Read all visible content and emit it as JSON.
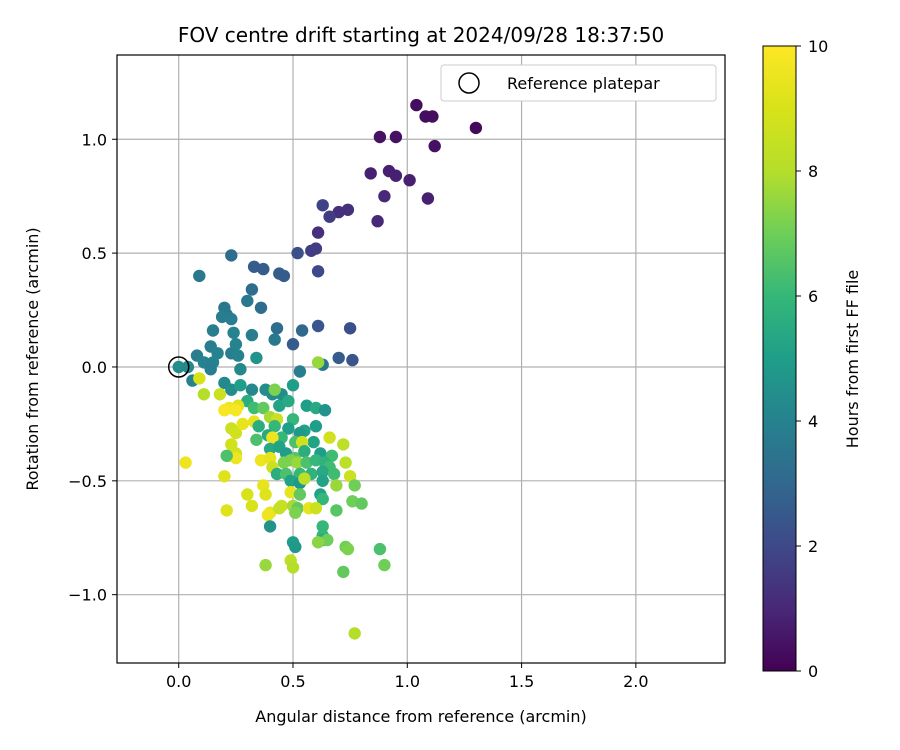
{
  "chart_data": {
    "type": "scatter",
    "title": "FOV centre drift starting at 2024/09/28 18:37:50",
    "xlabel": "Angular distance from reference (arcmin)",
    "ylabel": "Rotation from reference (arcmin)",
    "xlim": [
      -0.27,
      2.39
    ],
    "ylim": [
      -1.3,
      1.37
    ],
    "xticks": [
      0.0,
      0.5,
      1.0,
      1.5,
      2.0
    ],
    "xtick_labels": [
      "0.0",
      "0.5",
      "1.0",
      "1.5",
      "2.0"
    ],
    "yticks": [
      -1.0,
      -0.5,
      0.0,
      0.5,
      1.0
    ],
    "ytick_labels": [
      "−1.0",
      "−0.5",
      "0.0",
      "0.5",
      "1.0"
    ],
    "grid": true,
    "legend": {
      "placement": "top-right",
      "label": "Reference platepar"
    },
    "reference_point": {
      "x": 0.0,
      "y": 0.0
    },
    "colorbar": {
      "label": "Hours from first FF file",
      "range": [
        0,
        10
      ],
      "ticks": [
        0,
        2,
        4,
        6,
        8,
        10
      ],
      "tick_labels": [
        "0",
        "2",
        "4",
        "6",
        "8",
        "10"
      ],
      "colormap": "viridis"
    },
    "points": [
      [
        1.04,
        1.15,
        0.3
      ],
      [
        1.08,
        1.1,
        0.3
      ],
      [
        1.11,
        1.1,
        0.3
      ],
      [
        1.3,
        1.05,
        0.2
      ],
      [
        0.88,
        1.01,
        0.4
      ],
      [
        0.95,
        1.01,
        0.4
      ],
      [
        1.12,
        0.97,
        0.4
      ],
      [
        0.92,
        0.86,
        0.8
      ],
      [
        0.84,
        0.85,
        0.8
      ],
      [
        0.95,
        0.84,
        0.8
      ],
      [
        1.01,
        0.82,
        0.8
      ],
      [
        0.9,
        0.75,
        1.0
      ],
      [
        1.09,
        0.74,
        0.8
      ],
      [
        0.63,
        0.71,
        1.8
      ],
      [
        0.7,
        0.68,
        1.2
      ],
      [
        0.74,
        0.69,
        1.2
      ],
      [
        0.66,
        0.66,
        1.6
      ],
      [
        0.87,
        0.64,
        1.0
      ],
      [
        0.61,
        0.59,
        1.2
      ],
      [
        0.6,
        0.52,
        1.6
      ],
      [
        0.58,
        0.51,
        1.6
      ],
      [
        0.52,
        0.5,
        2.2
      ],
      [
        0.61,
        0.42,
        2.0
      ],
      [
        0.23,
        0.49,
        3.2
      ],
      [
        0.33,
        0.44,
        2.6
      ],
      [
        0.37,
        0.43,
        2.6
      ],
      [
        0.44,
        0.41,
        2.6
      ],
      [
        0.46,
        0.4,
        2.6
      ],
      [
        0.09,
        0.4,
        3.6
      ],
      [
        0.32,
        0.34,
        3.2
      ],
      [
        0.3,
        0.29,
        3.6
      ],
      [
        0.36,
        0.26,
        3.2
      ],
      [
        0.2,
        0.26,
        3.6
      ],
      [
        0.21,
        0.23,
        3.6
      ],
      [
        0.19,
        0.22,
        3.8
      ],
      [
        0.23,
        0.21,
        3.8
      ],
      [
        0.15,
        0.16,
        3.8
      ],
      [
        0.24,
        0.15,
        4.0
      ],
      [
        0.32,
        0.14,
        3.8
      ],
      [
        0.43,
        0.17,
        3.2
      ],
      [
        0.54,
        0.16,
        3.0
      ],
      [
        0.61,
        0.18,
        2.4
      ],
      [
        0.75,
        0.17,
        2.2
      ],
      [
        0.42,
        0.12,
        3.6
      ],
      [
        0.5,
        0.1,
        2.6
      ],
      [
        0.14,
        0.09,
        3.8
      ],
      [
        0.17,
        0.06,
        4.0
      ],
      [
        0.23,
        0.06,
        3.8
      ],
      [
        0.25,
        0.1,
        4.0
      ],
      [
        0.08,
        0.05,
        3.8
      ],
      [
        0.26,
        0.05,
        4.0
      ],
      [
        0.34,
        0.04,
        4.6
      ],
      [
        0.11,
        0.02,
        4.0
      ],
      [
        0.15,
        0.02,
        4.0
      ],
      [
        0.14,
        -0.01,
        3.8
      ],
      [
        0.0,
        0.0,
        4.4
      ],
      [
        0.04,
        0.0,
        4.2
      ],
      [
        0.27,
        -0.01,
        4.2
      ],
      [
        0.63,
        0.01,
        3.6
      ],
      [
        0.7,
        0.04,
        2.6
      ],
      [
        0.76,
        0.03,
        2.4
      ],
      [
        0.53,
        -0.02,
        3.8
      ],
      [
        0.61,
        0.02,
        7.6
      ],
      [
        0.06,
        -0.06,
        4.0
      ],
      [
        0.09,
        -0.05,
        9.0
      ],
      [
        0.2,
        -0.07,
        4.2
      ],
      [
        0.23,
        -0.1,
        4.4
      ],
      [
        0.27,
        -0.08,
        5.0
      ],
      [
        0.32,
        -0.1,
        4.2
      ],
      [
        0.38,
        -0.1,
        4.4
      ],
      [
        0.41,
        -0.12,
        4.4
      ],
      [
        0.45,
        -0.12,
        4.4
      ],
      [
        0.5,
        -0.08,
        5.0
      ],
      [
        0.42,
        -0.1,
        7.2
      ],
      [
        0.11,
        -0.12,
        8.0
      ],
      [
        0.18,
        -0.12,
        8.6
      ],
      [
        0.3,
        -0.15,
        5.6
      ],
      [
        0.33,
        -0.18,
        6.2
      ],
      [
        0.37,
        -0.18,
        6.8
      ],
      [
        0.44,
        -0.17,
        5.2
      ],
      [
        0.48,
        -0.15,
        5.4
      ],
      [
        0.56,
        -0.17,
        5.0
      ],
      [
        0.6,
        -0.18,
        5.4
      ],
      [
        0.64,
        -0.19,
        4.6
      ],
      [
        0.26,
        -0.17,
        9.2
      ],
      [
        0.22,
        -0.18,
        9.6
      ],
      [
        0.25,
        -0.19,
        9.8
      ],
      [
        0.2,
        -0.19,
        9.8
      ],
      [
        0.33,
        -0.24,
        9.4
      ],
      [
        0.4,
        -0.22,
        7.8
      ],
      [
        0.43,
        -0.23,
        8.6
      ],
      [
        0.5,
        -0.23,
        6.0
      ],
      [
        0.35,
        -0.26,
        5.6
      ],
      [
        0.42,
        -0.26,
        6.0
      ],
      [
        0.48,
        -0.27,
        5.0
      ],
      [
        0.55,
        -0.28,
        5.2
      ],
      [
        0.6,
        -0.26,
        5.0
      ],
      [
        0.23,
        -0.27,
        8.6
      ],
      [
        0.25,
        -0.29,
        8.8
      ],
      [
        0.28,
        -0.25,
        9.4
      ],
      [
        0.39,
        -0.3,
        5.4
      ],
      [
        0.45,
        -0.31,
        6.0
      ],
      [
        0.53,
        -0.29,
        4.8
      ],
      [
        0.59,
        -0.33,
        5.2
      ],
      [
        0.66,
        -0.31,
        8.8
      ],
      [
        0.34,
        -0.32,
        6.4
      ],
      [
        0.41,
        -0.31,
        9.6
      ],
      [
        0.51,
        -0.33,
        6.4
      ],
      [
        0.54,
        -0.33,
        8.8
      ],
      [
        0.72,
        -0.34,
        8.2
      ],
      [
        0.23,
        -0.34,
        8.8
      ],
      [
        0.25,
        -0.38,
        8.8
      ],
      [
        0.22,
        -0.39,
        8.8
      ],
      [
        0.25,
        -0.4,
        9.6
      ],
      [
        0.21,
        -0.39,
        6.4
      ],
      [
        0.4,
        -0.36,
        5.4
      ],
      [
        0.44,
        -0.35,
        5.2
      ],
      [
        0.47,
        -0.38,
        5.0
      ],
      [
        0.51,
        -0.4,
        6.6
      ],
      [
        0.55,
        -0.37,
        5.6
      ],
      [
        0.62,
        -0.38,
        5.0
      ],
      [
        0.67,
        -0.39,
        6.2
      ],
      [
        0.03,
        -0.42,
        9.6
      ],
      [
        0.36,
        -0.41,
        9.6
      ],
      [
        0.4,
        -0.4,
        9.4
      ],
      [
        0.41,
        -0.44,
        8.6
      ],
      [
        0.46,
        -0.42,
        7.2
      ],
      [
        0.49,
        -0.41,
        7.2
      ],
      [
        0.52,
        -0.42,
        7.6
      ],
      [
        0.56,
        -0.42,
        6.4
      ],
      [
        0.6,
        -0.41,
        6.0
      ],
      [
        0.64,
        -0.42,
        5.8
      ],
      [
        0.66,
        -0.44,
        6.2
      ],
      [
        0.73,
        -0.42,
        8.2
      ],
      [
        0.43,
        -0.47,
        5.6
      ],
      [
        0.47,
        -0.47,
        6.4
      ],
      [
        0.53,
        -0.47,
        6.0
      ],
      [
        0.58,
        -0.47,
        5.8
      ],
      [
        0.63,
        -0.46,
        5.4
      ],
      [
        0.68,
        -0.47,
        6.2
      ],
      [
        0.75,
        -0.48,
        8.6
      ],
      [
        0.2,
        -0.48,
        9.2
      ],
      [
        0.37,
        -0.52,
        9.4
      ],
      [
        0.49,
        -0.5,
        5.2
      ],
      [
        0.53,
        -0.51,
        4.8
      ],
      [
        0.55,
        -0.49,
        8.2
      ],
      [
        0.63,
        -0.5,
        5.2
      ],
      [
        0.69,
        -0.52,
        7.6
      ],
      [
        0.77,
        -0.52,
        7.0
      ],
      [
        0.3,
        -0.56,
        9.0
      ],
      [
        0.38,
        -0.56,
        9.2
      ],
      [
        0.49,
        -0.55,
        9.4
      ],
      [
        0.53,
        -0.56,
        6.8
      ],
      [
        0.62,
        -0.56,
        5.2
      ],
      [
        0.63,
        -0.58,
        6.0
      ],
      [
        0.76,
        -0.59,
        7.0
      ],
      [
        0.8,
        -0.6,
        6.8
      ],
      [
        0.32,
        -0.61,
        9.0
      ],
      [
        0.45,
        -0.61,
        8.6
      ],
      [
        0.5,
        -0.61,
        7.8
      ],
      [
        0.52,
        -0.62,
        6.8
      ],
      [
        0.57,
        -0.62,
        9.4
      ],
      [
        0.6,
        -0.62,
        8.6
      ],
      [
        0.69,
        -0.63,
        6.6
      ],
      [
        0.21,
        -0.63,
        9.2
      ],
      [
        0.4,
        -0.64,
        9.4
      ],
      [
        0.44,
        -0.62,
        8.4
      ],
      [
        0.51,
        -0.64,
        7.2
      ],
      [
        0.39,
        -0.65,
        9.6
      ],
      [
        0.4,
        -0.7,
        4.6
      ],
      [
        0.63,
        -0.7,
        6.0
      ],
      [
        0.63,
        -0.74,
        6.0
      ],
      [
        0.63,
        -0.76,
        5.4
      ],
      [
        0.65,
        -0.76,
        7.0
      ],
      [
        0.61,
        -0.77,
        7.4
      ],
      [
        0.5,
        -0.77,
        5.0
      ],
      [
        0.51,
        -0.79,
        4.8
      ],
      [
        0.73,
        -0.79,
        7.0
      ],
      [
        0.74,
        -0.8,
        7.2
      ],
      [
        0.88,
        -0.8,
        6.4
      ],
      [
        0.49,
        -0.85,
        8.2
      ],
      [
        0.38,
        -0.87,
        7.6
      ],
      [
        0.5,
        -0.88,
        8.0
      ],
      [
        0.9,
        -0.87,
        7.0
      ],
      [
        0.72,
        -0.9,
        6.8
      ],
      [
        0.77,
        -1.17,
        8.0
      ]
    ]
  }
}
